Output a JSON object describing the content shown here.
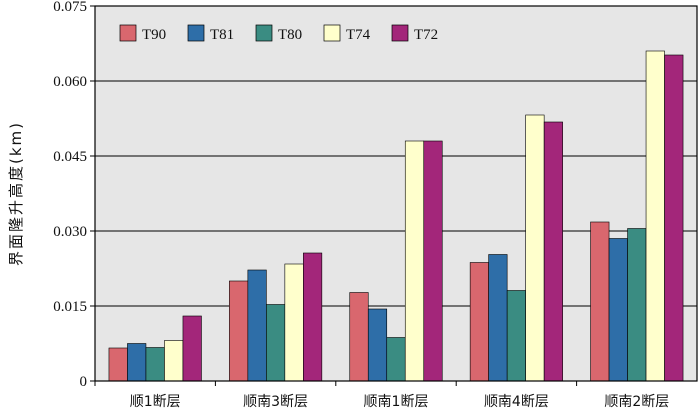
{
  "chart_data": {
    "type": "bar",
    "title": "",
    "xlabel": "",
    "ylabel": "界面隆升高度(km)",
    "ylim": [
      0,
      0.075
    ],
    "yticks": [
      "0",
      "0.015",
      "0.030",
      "0.045",
      "0.060",
      "0.075"
    ],
    "grid": "horizontal",
    "legend_position": "top-left",
    "categories": [
      "顺1断层",
      "顺南3断层",
      "顺南1断层",
      "顺南4断层",
      "顺南2断层"
    ],
    "series": [
      {
        "name": "T90",
        "color": "#d9676e",
        "values": [
          0.0066,
          0.02,
          0.0177,
          0.0237,
          0.0318
        ]
      },
      {
        "name": "T81",
        "color": "#2e6ea8",
        "values": [
          0.0075,
          0.0222,
          0.0144,
          0.0253,
          0.0285
        ]
      },
      {
        "name": "T80",
        "color": "#3a8c82",
        "values": [
          0.0067,
          0.0153,
          0.0087,
          0.0181,
          0.0305
        ]
      },
      {
        "name": "T74",
        "color": "#ffffcc",
        "values": [
          0.0081,
          0.0234,
          0.048,
          0.0532,
          0.066
        ]
      },
      {
        "name": "T72",
        "color": "#a3267a",
        "values": [
          0.013,
          0.0256,
          0.048,
          0.0518,
          0.0652
        ]
      }
    ],
    "plot_background": "#e6e6e6"
  }
}
